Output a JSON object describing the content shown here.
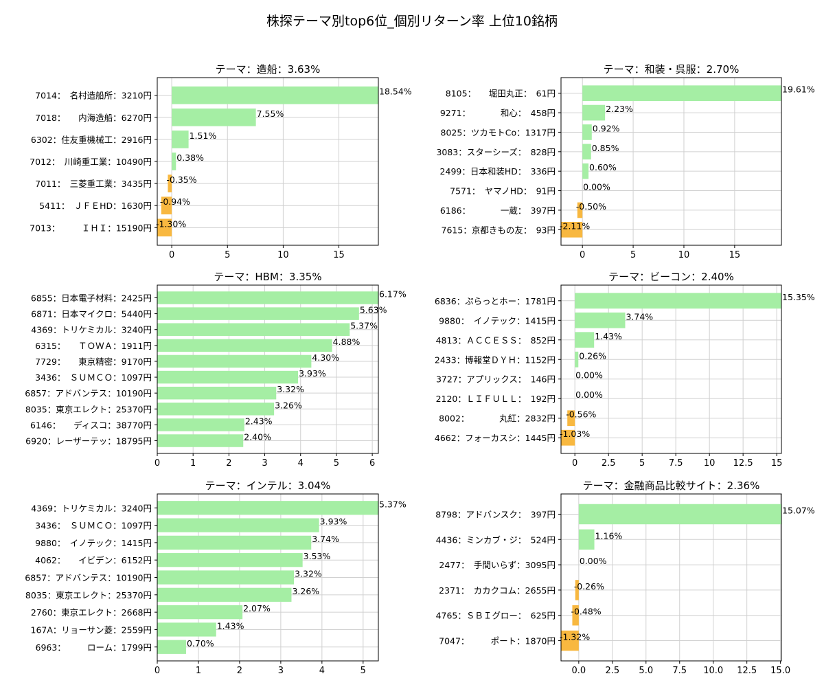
{
  "title": "株探テーマ別top6位_個別リターン率 上位10銘柄",
  "colors": {
    "positive": "#a5eea4",
    "negative": "#f8b840",
    "grid": "#d0d0d0",
    "axis": "#000000"
  },
  "chart_data": [
    {
      "type": "bar",
      "orientation": "horizontal",
      "title": "テーマ：造船：3.63%",
      "categories": [
        "7014：　名村造船所：3210円",
        "7018：　　内海造船：6270円",
        "6302：住友重機械工：2916円",
        "7012：　川崎重工業：10490円",
        "7011：　三菱重工業：3435円",
        "5411：　ＪＦＥHD：1630円",
        "7013：　　　ＩＨＩ：15190円"
      ],
      "values": [
        18.54,
        7.55,
        1.51,
        0.38,
        -0.35,
        -0.94,
        -1.3
      ],
      "value_labels": [
        "18.54%",
        "7.55%",
        "1.51%",
        "0.38%",
        "-0.35%",
        "-0.94%",
        "-1.30%"
      ],
      "xlim": [
        -1.3,
        18.54
      ],
      "xticks": [
        0,
        5,
        10,
        15
      ],
      "grid": true
    },
    {
      "type": "bar",
      "orientation": "horizontal",
      "title": "テーマ：和装・呉服：2.70%",
      "categories": [
        "8105：　　堀田丸正：　61円",
        "9271：　　　　和心：　458円",
        "8025：ツカモトCo：1317円",
        "3083：スターシーズ：　828円",
        "2499：日本和装HD：　336円",
        "7571：　ヤマノHD：　91円",
        "6186：　　　　一蔵：　397円",
        "7615：京都きもの友：　93円"
      ],
      "values": [
        19.61,
        2.23,
        0.92,
        0.85,
        0.6,
        0.0,
        -0.5,
        -2.11
      ],
      "value_labels": [
        "19.61%",
        "2.23%",
        "0.92%",
        "0.85%",
        "0.60%",
        "0.00%",
        "-0.50%",
        "-2.11%"
      ],
      "xlim": [
        -2.11,
        19.61
      ],
      "xticks": [
        0,
        5,
        10,
        15
      ],
      "grid": true
    },
    {
      "type": "bar",
      "orientation": "horizontal",
      "title": "テーマ：HBM：3.35%",
      "categories": [
        "6855：日本電子材料：2425円",
        "6871：日本マイクロ：5440円",
        "4369：トリケミカル：3240円",
        "6315：　　ＴＯＷＡ：1911円",
        "7729：　　東京精密：9170円",
        "3436：　ＳＵＭＣＯ：1097円",
        "6857：アドバンテス：10190円",
        "8035：東京エレクト：25370円",
        "6146：　　ディスコ：38770円",
        "6920：レーザーテッ：18795円"
      ],
      "values": [
        6.17,
        5.63,
        5.37,
        4.88,
        4.3,
        3.93,
        3.32,
        3.26,
        2.43,
        2.4
      ],
      "value_labels": [
        "6.17%",
        "5.63%",
        "5.37%",
        "4.88%",
        "4.30%",
        "3.93%",
        "3.32%",
        "3.26%",
        "2.43%",
        "2.40%"
      ],
      "xlim": [
        0,
        6.17
      ],
      "xticks": [
        0,
        1,
        2,
        3,
        4,
        5,
        6
      ],
      "grid": true
    },
    {
      "type": "bar",
      "orientation": "horizontal",
      "title": "テーマ：ビーコン：2.40%",
      "categories": [
        "6836：ぷらっとホー：1781円",
        "9880：　イノテック：1415円",
        "4813：ＡＣＣＥＳＳ：　852円",
        "2433：博報堂ＤＹＨ：1152円",
        "3727：アプリックス：　146円",
        "2120：ＬＩＦＵＬＬ：　192円",
        "8002：　　　　丸紅：2832円",
        "4662：フォーカスシ：1445円"
      ],
      "values": [
        15.35,
        3.74,
        1.43,
        0.26,
        0.0,
        0.0,
        -0.56,
        -1.03
      ],
      "value_labels": [
        "15.35%",
        "3.74%",
        "1.43%",
        "0.26%",
        "0.00%",
        "0.00%",
        "-0.56%",
        "-1.03%"
      ],
      "xlim": [
        -1.03,
        15.35
      ],
      "xticks": [
        0,
        2.5,
        5,
        7.5,
        10,
        12.5,
        15
      ],
      "grid": true
    },
    {
      "type": "bar",
      "orientation": "horizontal",
      "title": "テーマ：インテル：3.04%",
      "categories": [
        "4369：トリケミカル：3240円",
        "3436：　ＳＵＭＣＯ：1097円",
        "9880：　イノテック：1415円",
        "4062：　　イビデン：6152円",
        "6857：アドバンテス：10190円",
        "8035：東京エレクト：25370円",
        "2760：東京エレクト：2668円",
        "167A：リョーサン菱：2559円",
        "6963：　　　ローム：1799円"
      ],
      "values": [
        5.37,
        3.93,
        3.74,
        3.53,
        3.32,
        3.26,
        2.07,
        1.43,
        0.7
      ],
      "value_labels": [
        "5.37%",
        "3.93%",
        "3.74%",
        "3.53%",
        "3.32%",
        "3.26%",
        "2.07%",
        "1.43%",
        "0.70%"
      ],
      "xlim": [
        0,
        5.37
      ],
      "xticks": [
        0,
        1,
        2,
        3,
        4,
        5
      ],
      "grid": true
    },
    {
      "type": "bar",
      "orientation": "horizontal",
      "title": "テーマ：金融商品比較サイト：2.36%",
      "categories": [
        "8798：アドバンスク：　397円",
        "4436：ミンカブ・ジ：　524円",
        "2477：　手間いらず：3095円",
        "2371：　カカクコム：2655円",
        "4765：ＳＢＩグロー：　625円",
        "7047：　　　ポート：1870円"
      ],
      "values": [
        15.07,
        1.16,
        0.0,
        -0.26,
        -0.48,
        -1.32
      ],
      "value_labels": [
        "15.07%",
        "1.16%",
        "0.00%",
        "-0.26%",
        "-0.48%",
        "-1.32%"
      ],
      "xlim": [
        -1.32,
        15.07
      ],
      "xticks": [
        0,
        2.5,
        5,
        7.5,
        10,
        12.5,
        15
      ],
      "xtick_labels": [
        "0.0",
        "2.5",
        "5.0",
        "7.5",
        "10.0",
        "12.5",
        "15.0"
      ],
      "grid": true
    }
  ]
}
